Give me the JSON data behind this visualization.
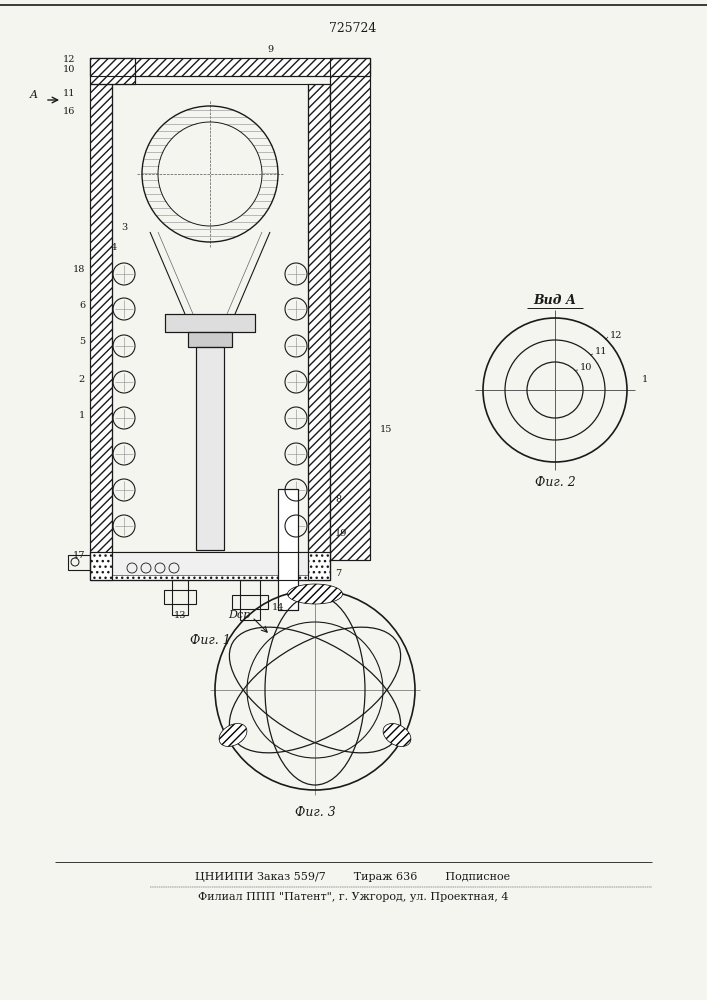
{
  "patent_number": "725724",
  "footer_line1": "ЦНИИПИ Заказ 559/7        Тираж 636        Подписное",
  "footer_line2": "Филиал ППП \"Патент\", г. Ужгород, ул. Проектная, 4",
  "fig1_label": "Фиг. 1",
  "fig2_label": "Фиг. 2",
  "fig3_label": "Фиг. 3",
  "vid_label": "Вид А",
  "bg_color": "#f5f5f0",
  "line_color": "#1a1a1a"
}
